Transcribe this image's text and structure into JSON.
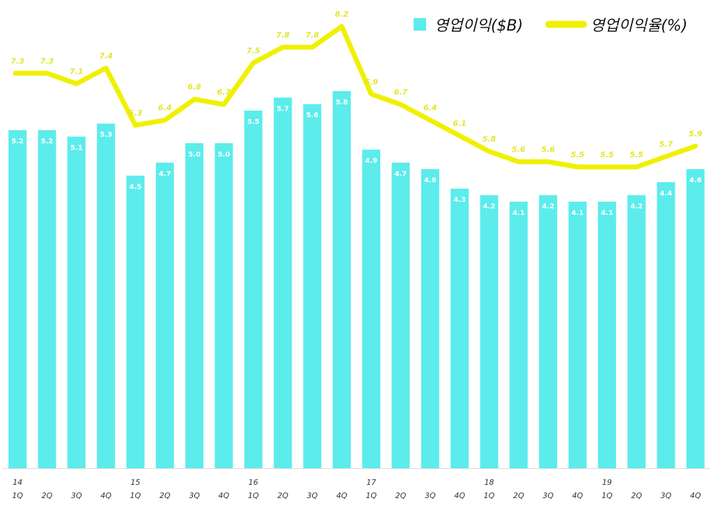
{
  "chart_data": {
    "type": "bar",
    "categories": [
      "1Q",
      "2Q",
      "3Q",
      "4Q",
      "1Q",
      "2Q",
      "3Q",
      "4Q",
      "1Q",
      "2Q",
      "3Q",
      "4Q",
      "1Q",
      "2Q",
      "3Q",
      "4Q",
      "1Q",
      "2Q",
      "3Q",
      "4Q",
      "1Q",
      "2Q",
      "3Q",
      "4Q"
    ],
    "year_labels": [
      "14",
      "",
      "",
      "",
      "15",
      "",
      "",
      "",
      "16",
      "",
      "",
      "",
      "17",
      "",
      "",
      "",
      "18",
      "",
      "",
      "",
      "19",
      "",
      "",
      ""
    ],
    "series": [
      {
        "name": "영업이익($B)",
        "kind": "bar",
        "color": "#5cecec",
        "values": [
          5.2,
          5.2,
          5.1,
          5.3,
          4.5,
          4.7,
          5.0,
          5.0,
          5.5,
          5.7,
          5.6,
          5.8,
          4.9,
          4.7,
          4.6,
          4.3,
          4.2,
          4.1,
          4.2,
          4.1,
          4.1,
          4.2,
          4.4,
          4.6
        ],
        "labels": [
          "5.2",
          "5.2",
          "5.1",
          "5.3",
          "4.5",
          "4.7",
          "5.0",
          "5.0",
          "5.5",
          "5.7",
          "5.6",
          "5.8",
          "4.9",
          "4.7",
          "4.6",
          "4.3",
          "4.2",
          "4.1",
          "4.2",
          "4.1",
          "4.1",
          "4.2",
          "4.4",
          "4.6"
        ]
      },
      {
        "name": "영업이익율(%)",
        "kind": "line",
        "color": "#f0f000",
        "values": [
          7.3,
          7.3,
          7.1,
          7.4,
          6.3,
          6.4,
          6.8,
          6.7,
          7.5,
          7.8,
          7.8,
          8.2,
          6.9,
          6.7,
          6.4,
          6.1,
          5.8,
          5.6,
          5.6,
          5.5,
          5.5,
          5.5,
          5.7,
          5.9
        ],
        "labels": [
          "7.3",
          "7.3",
          "7.1",
          "7.4",
          "6.3",
          "6.4",
          "6.8",
          "6.7",
          "7.5",
          "7.8",
          "7.8",
          "8.2",
          "6.9",
          "6.7",
          "6.4",
          "6.1",
          "5.8",
          "5.6",
          "5.6",
          "5.5",
          "5.5",
          "5.5",
          "5.7",
          "5.9"
        ]
      }
    ],
    "legend": {
      "position": "top-right",
      "bar_label": "영업이익($B)",
      "line_label": "영업이익율(%)"
    },
    "bar_axis_range": [
      0,
      6.8
    ],
    "line_axis_range": [
      3.7,
      8.3
    ],
    "grid": false,
    "title": "",
    "xlabel": "",
    "ylabel": ""
  }
}
